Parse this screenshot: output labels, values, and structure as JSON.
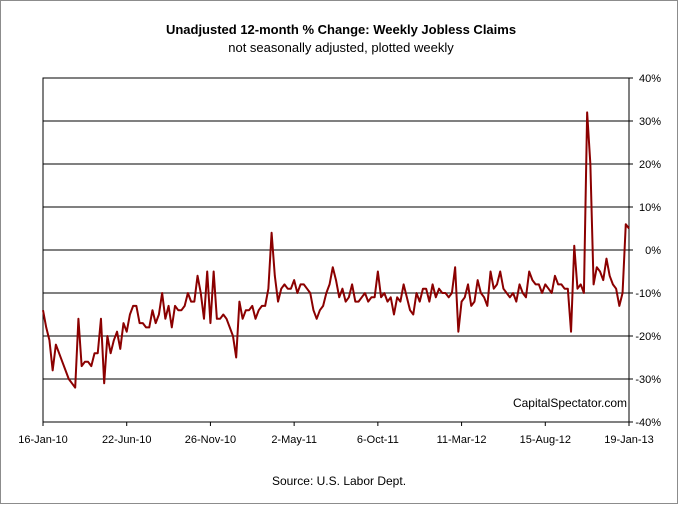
{
  "chart_data": {
    "type": "line",
    "title": "Unadjusted 12-month %  Change: Weekly Jobless Claims",
    "subtitle": "not seasonally adjusted, plotted weekly",
    "source": "Source: U.S. Labor Dept.",
    "watermark": "CapitalSpectator.com",
    "x_start": "2010-01-16",
    "x_end": "2013-01-19",
    "x_tick_labels": [
      "16-Jan-10",
      "22-Jun-10",
      "26-Nov-10",
      "2-May-11",
      "6-Oct-11",
      "11-Mar-12",
      "15-Aug-12",
      "19-Jan-13"
    ],
    "y_tick_labels": [
      "40%",
      "30%",
      "20%",
      "10%",
      "0%",
      "-10%",
      "-20%",
      "-30%",
      "-40%"
    ],
    "ylim": [
      -40,
      40
    ],
    "y_axis_side": "right",
    "grid": true,
    "line_color": "#8b0000",
    "series": [
      {
        "values": [
          -14,
          -18,
          -21,
          -28,
          -22,
          -24,
          -26,
          -28,
          -30,
          -31,
          -32,
          -16,
          -27,
          -26,
          -26,
          -27,
          -24,
          -24,
          -16,
          -31,
          -20,
          -24,
          -21,
          -19,
          -23,
          -17,
          -19,
          -15,
          -13,
          -13,
          -17,
          -17,
          -18,
          -18,
          -14,
          -17,
          -15,
          -10,
          -16,
          -13,
          -18,
          -13,
          -14,
          -14,
          -13,
          -10,
          -12,
          -12,
          -6,
          -10,
          -16,
          -5,
          -17,
          -5,
          -16,
          -16,
          -15,
          -16,
          -18,
          -20,
          -25,
          -12,
          -16,
          -14,
          -14,
          -13,
          -16,
          -14,
          -13,
          -13,
          -9,
          4,
          -6,
          -12,
          -9,
          -8,
          -9,
          -9,
          -7,
          -10,
          -8,
          -8,
          -9,
          -10,
          -14,
          -16,
          -14,
          -13,
          -10,
          -8,
          -4,
          -7,
          -11,
          -9,
          -12,
          -11,
          -8,
          -12,
          -12,
          -11,
          -10,
          -12,
          -11,
          -11,
          -5,
          -11,
          -10,
          -12,
          -11,
          -15,
          -11,
          -12,
          -8,
          -11,
          -14,
          -15,
          -10,
          -12,
          -9,
          -9,
          -12,
          -8,
          -11,
          -9,
          -10,
          -10,
          -11,
          -10,
          -4,
          -19,
          -12,
          -11,
          -8,
          -13,
          -12,
          -7,
          -10,
          -11,
          -13,
          -5,
          -9,
          -8,
          -5,
          -9,
          -10,
          -11,
          -10,
          -12,
          -8,
          -10,
          -11,
          -5,
          -7,
          -8,
          -8,
          -10,
          -8,
          -9,
          -10,
          -6,
          -8,
          -8,
          -9,
          -9,
          -19,
          1,
          -9,
          -8,
          -10,
          32,
          20,
          -8,
          -4,
          -5,
          -7,
          -2,
          -6,
          -8,
          -9,
          -13,
          -10,
          6,
          5
        ]
      }
    ]
  }
}
